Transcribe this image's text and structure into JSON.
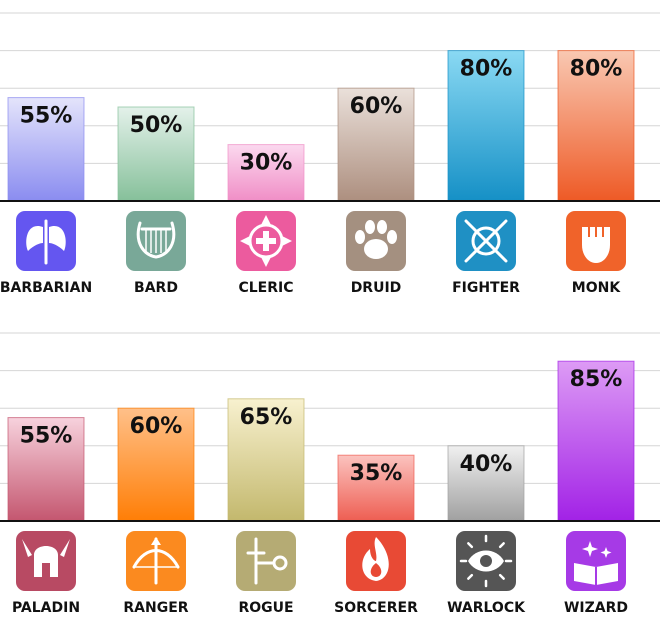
{
  "chart_data": [
    {
      "type": "bar",
      "categories": [
        "BARBARIAN",
        "BARD",
        "CLERIC",
        "DRUID",
        "FIGHTER",
        "MONK"
      ],
      "values": [
        55,
        50,
        30,
        60,
        80,
        80
      ],
      "value_labels": [
        "55%",
        "50%",
        "30%",
        "60%",
        "80%",
        "80%"
      ],
      "ylim": [
        0,
        100
      ],
      "grid": true,
      "colors": [
        [
          "#e4e4fb",
          "#8a8cf0"
        ],
        [
          "#e4f1ea",
          "#86c09a"
        ],
        [
          "#fbd9ef",
          "#f08ec6"
        ],
        [
          "#eae0da",
          "#ad8f7f"
        ],
        [
          "#8ad9f3",
          "#1590c6"
        ],
        [
          "#f9c8b2",
          "#ee5a26"
        ]
      ],
      "icons": [
        {
          "name": "double-axe-icon",
          "bg": "#6456f0"
        },
        {
          "name": "lyre-icon",
          "bg": "#79a898"
        },
        {
          "name": "holy-cross-icon",
          "bg": "#ec5b9e"
        },
        {
          "name": "paw-icon",
          "bg": "#a49080"
        },
        {
          "name": "crossed-swords-shield-icon",
          "bg": "#1f90c4"
        },
        {
          "name": "fist-icon",
          "bg": "#f0632a"
        }
      ]
    },
    {
      "type": "bar",
      "categories": [
        "PALADIN",
        "RANGER",
        "ROGUE",
        "SORCERER",
        "WARLOCK",
        "WIZARD"
      ],
      "values": [
        55,
        60,
        65,
        35,
        40,
        85
      ],
      "value_labels": [
        "55%",
        "60%",
        "65%",
        "35%",
        "40%",
        "85%"
      ],
      "ylim": [
        0,
        100
      ],
      "grid": true,
      "colors": [
        [
          "#f7d2dd",
          "#c4566f"
        ],
        [
          "#ffc089",
          "#ff7e06"
        ],
        [
          "#f8f1cf",
          "#c3b86d"
        ],
        [
          "#fbc3bf",
          "#ee5e52"
        ],
        [
          "#f0f0f0",
          "#a0a0a0"
        ],
        [
          "#dd9bf5",
          "#a222e6"
        ]
      ],
      "icons": [
        {
          "name": "winged-helmet-icon",
          "bg": "#b84a63"
        },
        {
          "name": "bow-arrow-icon",
          "bg": "#fb8a1f"
        },
        {
          "name": "dagger-key-icon",
          "bg": "#b5ab74"
        },
        {
          "name": "fire-icon",
          "bg": "#e84a35"
        },
        {
          "name": "eye-icon",
          "bg": "#555555"
        },
        {
          "name": "spellbook-icon",
          "bg": "#a63ae6"
        }
      ]
    }
  ]
}
